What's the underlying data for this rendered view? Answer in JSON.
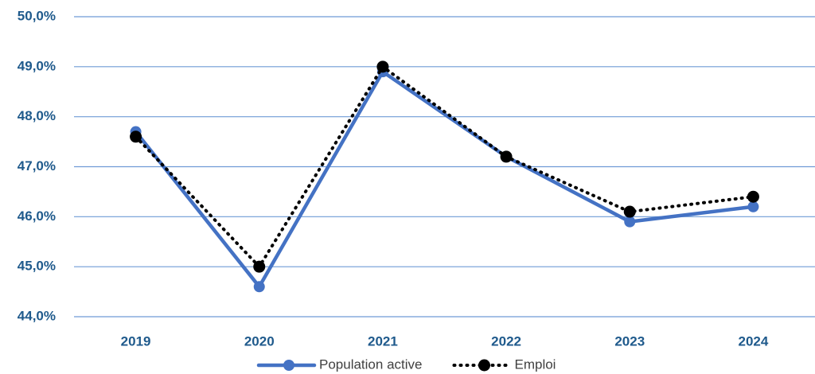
{
  "chart_data": {
    "type": "line",
    "categories": [
      "2019",
      "2020",
      "2021",
      "2022",
      "2023",
      "2024"
    ],
    "series": [
      {
        "name": "Population active",
        "color": "#4472c4",
        "values": [
          47.7,
          44.6,
          48.9,
          47.2,
          45.9,
          46.2
        ]
      },
      {
        "name": "Emploi",
        "color": "#000000",
        "values": [
          47.6,
          45.0,
          49.0,
          47.2,
          46.1,
          46.4
        ]
      }
    ],
    "ylim": [
      44,
      50
    ],
    "yticks": [
      {
        "value": 44,
        "label": "44,0%"
      },
      {
        "value": 45,
        "label": "45,0%"
      },
      {
        "value": 46,
        "label": "46,0%"
      },
      {
        "value": 47,
        "label": "47,0%"
      },
      {
        "value": 48,
        "label": "48,0%"
      },
      {
        "value": 49,
        "label": "49,0%"
      },
      {
        "value": 50,
        "label": "50,0%"
      }
    ],
    "grid": true,
    "legend": "bottom"
  }
}
